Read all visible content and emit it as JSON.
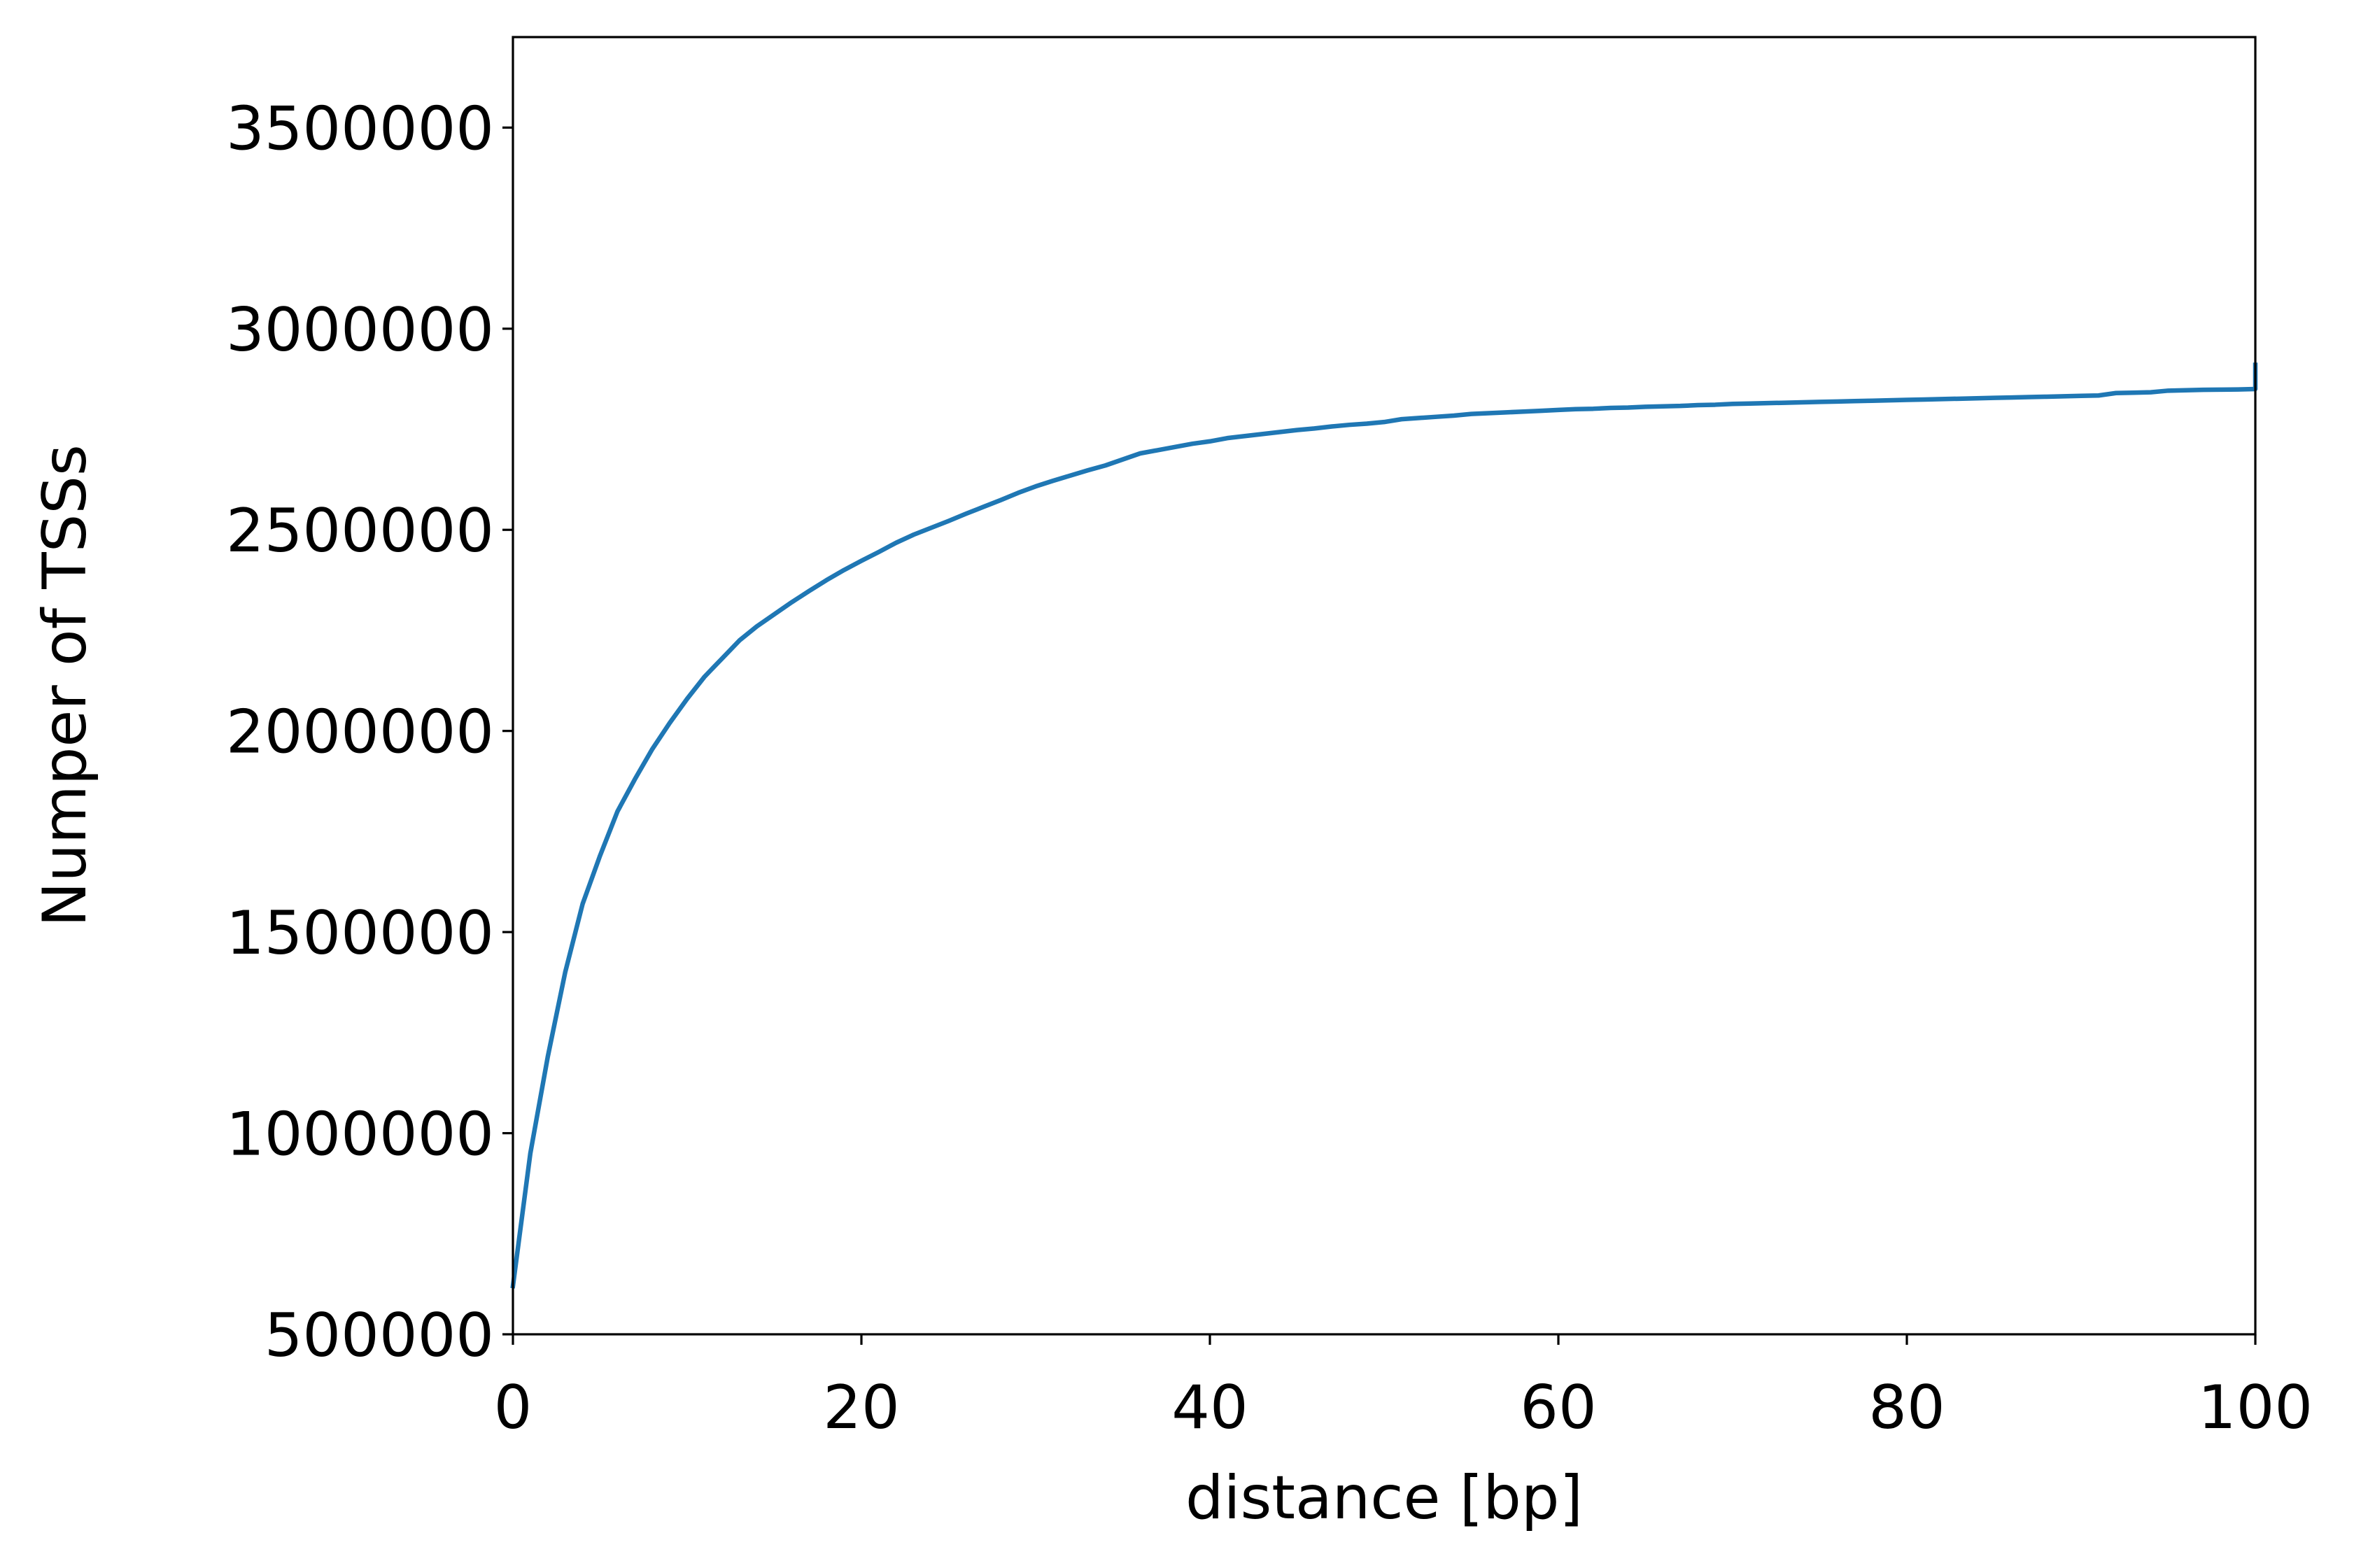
{
  "chart_data": {
    "type": "line",
    "title": "",
    "xlabel": "distance [bp]",
    "ylabel": "Numper of TSSs",
    "xlim": [
      0,
      100
    ],
    "ylim": [
      500000,
      3725000
    ],
    "xticks": [
      0,
      20,
      40,
      60,
      80,
      100
    ],
    "yticks": [
      500000,
      1000000,
      1500000,
      2000000,
      2500000,
      3000000,
      3500000
    ],
    "xtick_labels": [
      "0",
      "20",
      "40",
      "60",
      "80",
      "100"
    ],
    "ytick_labels": [
      "500000",
      "1000000",
      "1500000",
      "2000000",
      "2500000",
      "3000000",
      "3500000"
    ],
    "grid": false,
    "legend": "none",
    "line_color": "#1f77b4",
    "series": [
      {
        "x": [
          0,
          1,
          2,
          3,
          4,
          5,
          6,
          7,
          8,
          9,
          10,
          11,
          12,
          13,
          14,
          15,
          16,
          17,
          18,
          19,
          20,
          21,
          22,
          23,
          24,
          25,
          26,
          27,
          28,
          29,
          30,
          31,
          32,
          33,
          34,
          35,
          36,
          37,
          38,
          39,
          40,
          41,
          42,
          43,
          44,
          45,
          46,
          47,
          48,
          49,
          50,
          51,
          52,
          53,
          54,
          55,
          56,
          57,
          58,
          59,
          60,
          61,
          62,
          63,
          64,
          65,
          66,
          67,
          68,
          69,
          70,
          71,
          72,
          73,
          74,
          75,
          76,
          77,
          78,
          79,
          80,
          81,
          82,
          83,
          84,
          85,
          86,
          87,
          88,
          89,
          90,
          91,
          92,
          93,
          94,
          95,
          96,
          97,
          98,
          99,
          100,
          100
        ],
        "y": [
          620000,
          950000,
          1190000,
          1400000,
          1570000,
          1690000,
          1800000,
          1880000,
          1955000,
          2020000,
          2080000,
          2135000,
          2180000,
          2225000,
          2260000,
          2290000,
          2320000,
          2348000,
          2375000,
          2400000,
          2423000,
          2445000,
          2468000,
          2488000,
          2505000,
          2522000,
          2540000,
          2557000,
          2574000,
          2592000,
          2608000,
          2622000,
          2635000,
          2648000,
          2660000,
          2675000,
          2690000,
          2698000,
          2706000,
          2714000,
          2720000,
          2728000,
          2733000,
          2738000,
          2743000,
          2748000,
          2752000,
          2757000,
          2761000,
          2764000,
          2768000,
          2775000,
          2778000,
          2781000,
          2784000,
          2788000,
          2790000,
          2792000,
          2794000,
          2796000,
          2798000,
          2800000,
          2801000,
          2803000,
          2804000,
          2806000,
          2807000,
          2808000,
          2810000,
          2811000,
          2813000,
          2814000,
          2815000,
          2816000,
          2817000,
          2818000,
          2819000,
          2820000,
          2821000,
          2822000,
          2823000,
          2824000,
          2825000,
          2826000,
          2827000,
          2828000,
          2829000,
          2830000,
          2831000,
          2832000,
          2833000,
          2834000,
          2840000,
          2841000,
          2842000,
          2846000,
          2847000,
          2848000,
          2848500,
          2849000,
          2850000,
          2910000
        ]
      }
    ]
  }
}
